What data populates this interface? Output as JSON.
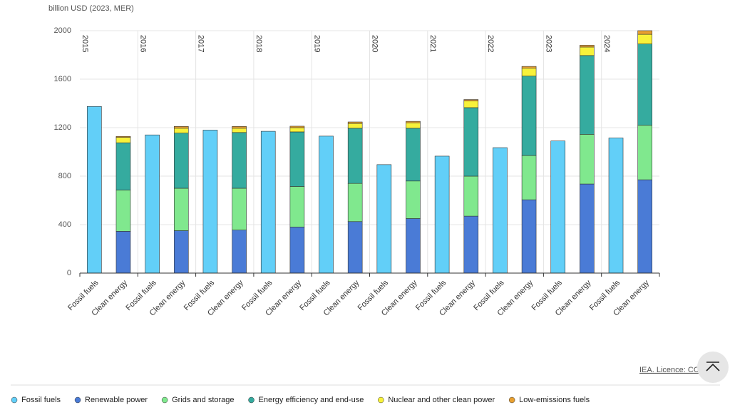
{
  "chart_data": {
    "type": "stacked_bar",
    "y_axis_label": "billion USD (2023, MER)",
    "groups": [
      "2015",
      "2016",
      "2017",
      "2018",
      "2019",
      "2020",
      "2021",
      "2022",
      "2023",
      "2024"
    ],
    "categories": [
      "Fossil fuels",
      "Clean energy",
      "Fossil fuels",
      "Clean energy",
      "Fossil fuels",
      "Clean energy",
      "Fossil fuels",
      "Clean energy",
      "Fossil fuels",
      "Clean energy",
      "Fossil fuels",
      "Clean energy",
      "Fossil fuels",
      "Clean energy",
      "Fossil fuels",
      "Clean energy",
      "Fossil fuels",
      "Clean energy",
      "Fossil fuels",
      "Clean energy"
    ],
    "series": [
      {
        "name": "Fossil fuels",
        "color": "#62cff8",
        "values": [
          1375,
          null,
          1140,
          null,
          1180,
          null,
          1170,
          null,
          1130,
          null,
          895,
          null,
          965,
          null,
          1035,
          null,
          1090,
          null,
          1115,
          null
        ]
      },
      {
        "name": "Renewable power",
        "color": "#4a7bd6",
        "values": [
          null,
          345,
          null,
          350,
          null,
          355,
          null,
          380,
          null,
          425,
          null,
          450,
          null,
          470,
          null,
          605,
          null,
          735,
          null,
          770
        ]
      },
      {
        "name": "Grids and storage",
        "color": "#80e88e",
        "values": [
          null,
          340,
          null,
          350,
          null,
          345,
          null,
          335,
          null,
          315,
          null,
          310,
          null,
          330,
          null,
          365,
          null,
          410,
          null,
          450
        ]
      },
      {
        "name": "Energy efficiency and end-use",
        "color": "#35ab9f",
        "values": [
          null,
          390,
          null,
          455,
          null,
          460,
          null,
          450,
          null,
          455,
          null,
          435,
          null,
          565,
          null,
          655,
          null,
          650,
          null,
          670
        ]
      },
      {
        "name": "Nuclear and other clean power",
        "color": "#f8f23a",
        "values": [
          null,
          45,
          null,
          40,
          null,
          35,
          null,
          35,
          null,
          40,
          null,
          45,
          null,
          55,
          null,
          65,
          null,
          70,
          null,
          80
        ]
      },
      {
        "name": "Low-emissions fuels",
        "color": "#e8a030",
        "values": [
          null,
          8,
          null,
          15,
          null,
          15,
          null,
          12,
          null,
          12,
          null,
          12,
          null,
          12,
          null,
          15,
          null,
          15,
          null,
          30
        ]
      }
    ],
    "ylim": [
      0,
      2000
    ],
    "yticks": [
      0,
      400,
      800,
      1200,
      1600,
      2000
    ],
    "grid": true,
    "credit": "IEA. Licence: CC"
  }
}
